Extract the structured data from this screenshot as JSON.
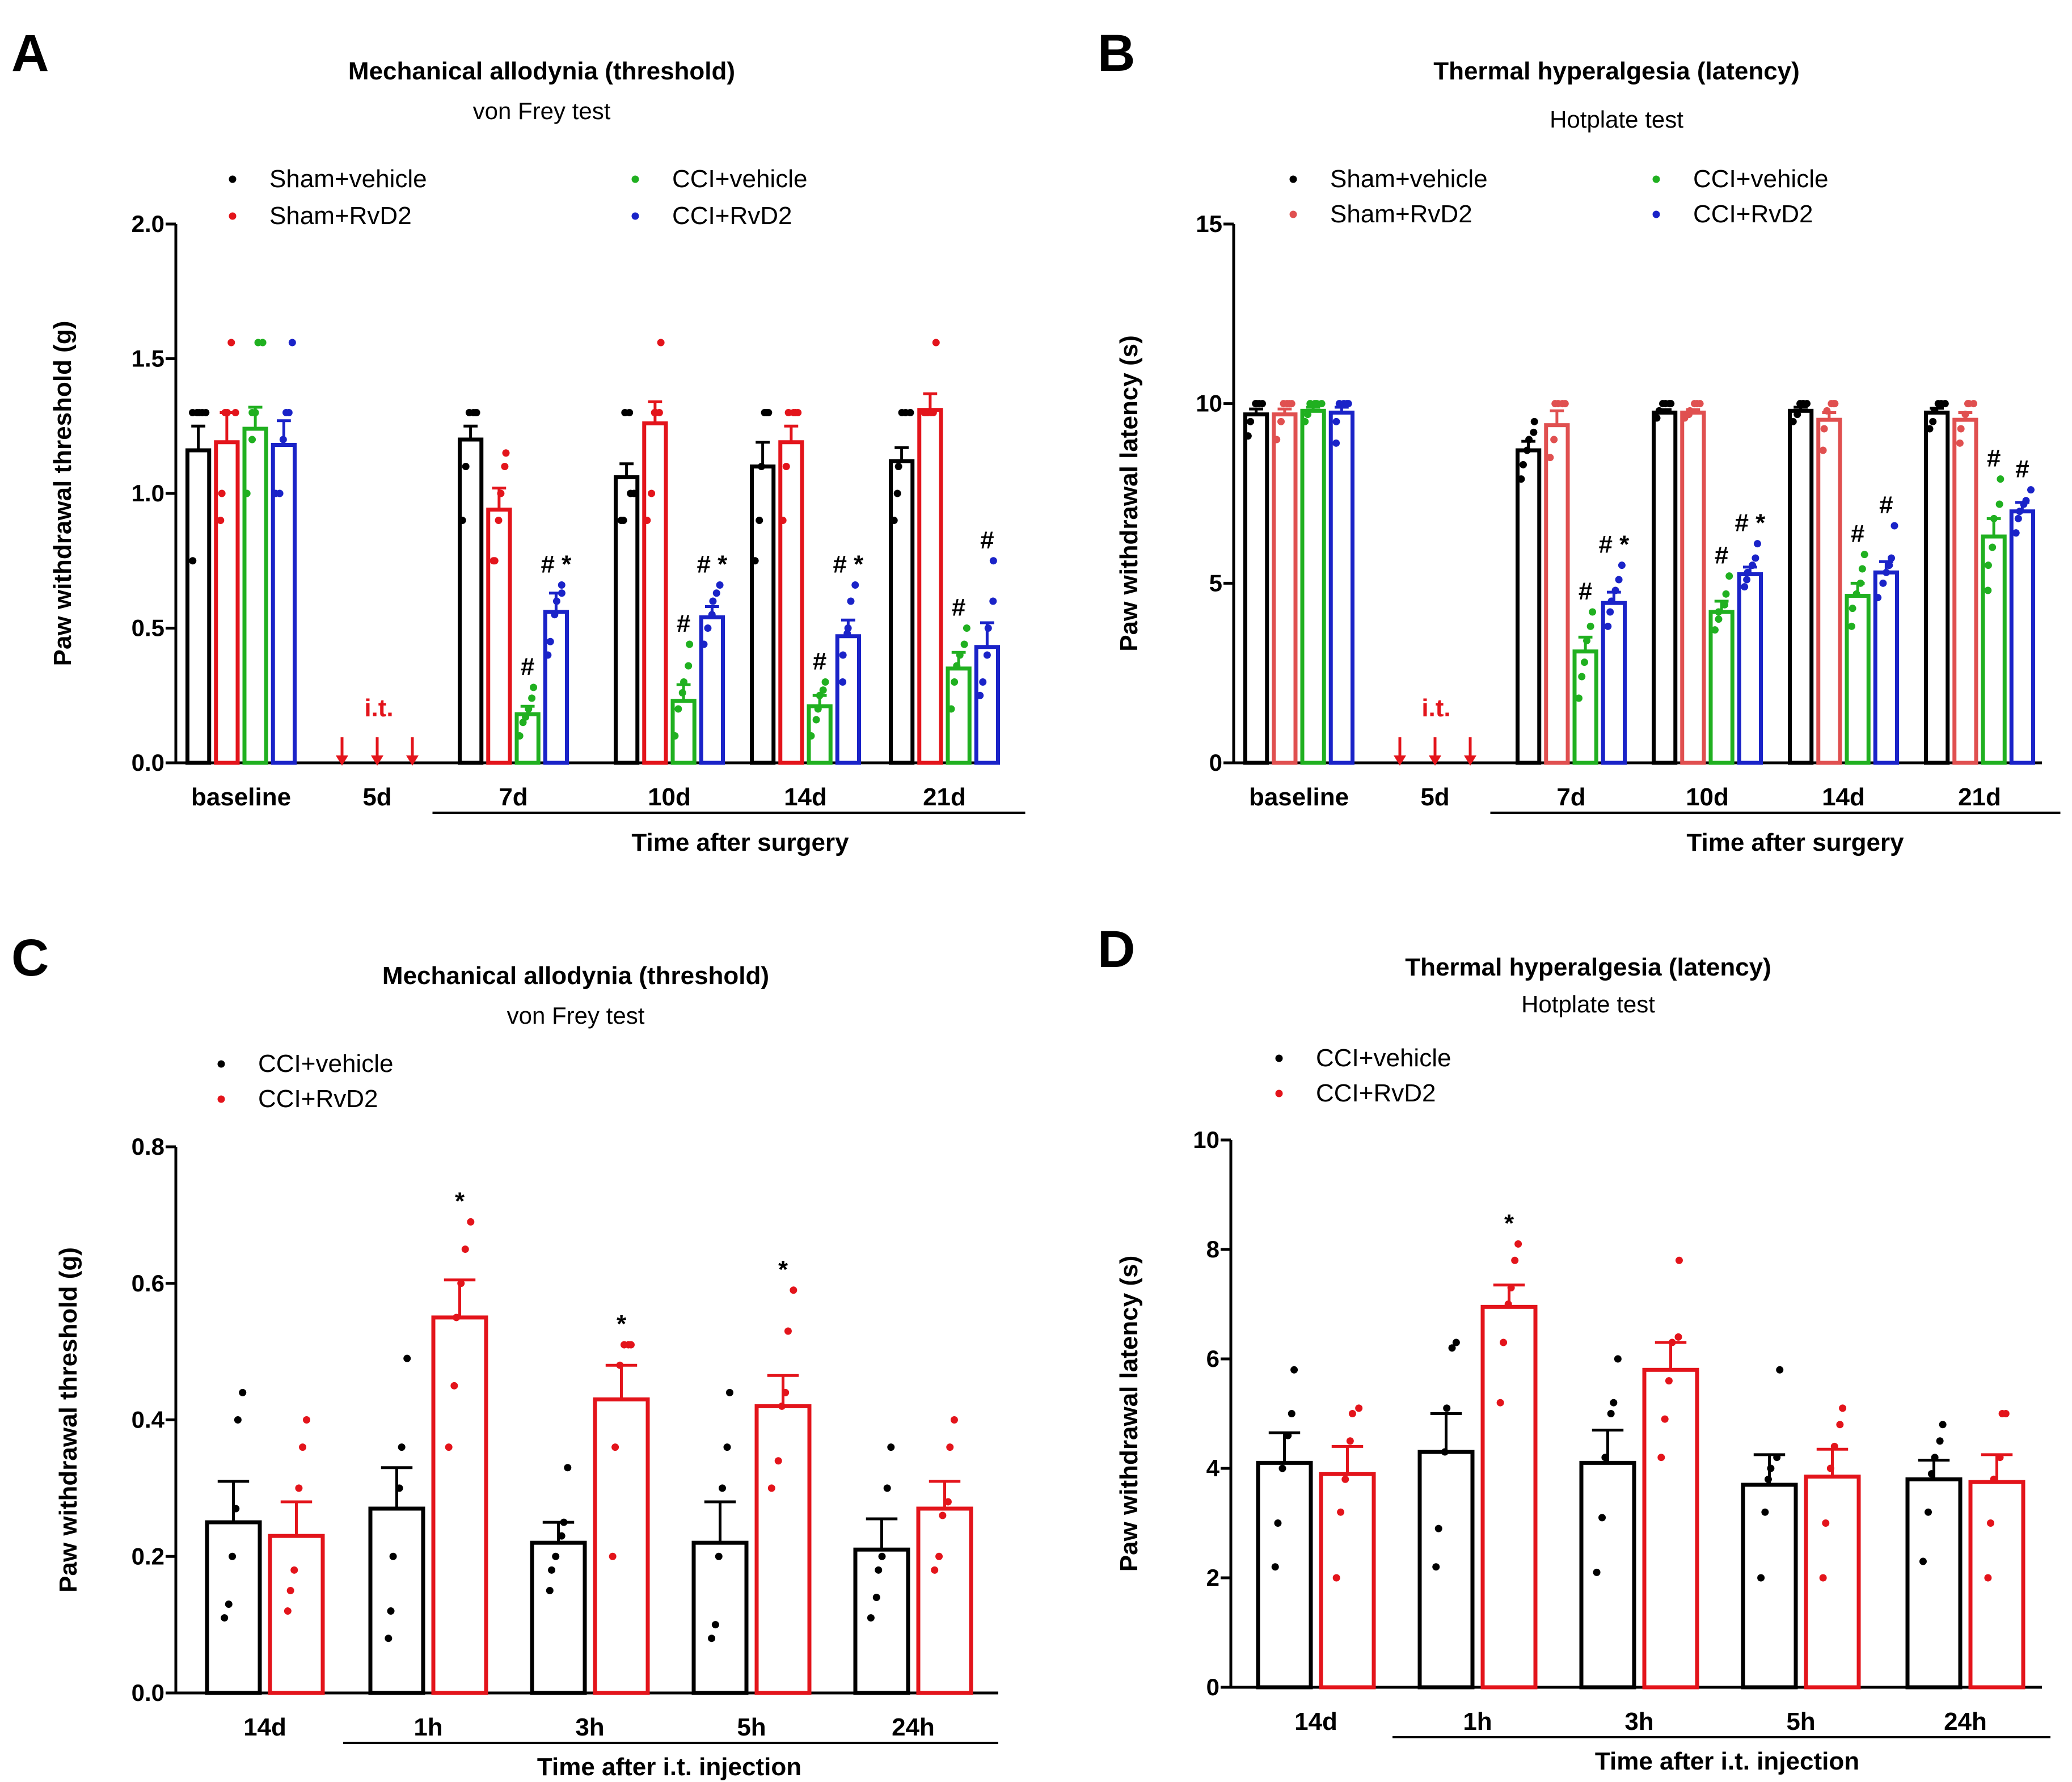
{
  "figure_title": "",
  "chart_data": [
    {
      "panel": "A",
      "type": "bar",
      "title": "Mechanical allodynia (threshold)",
      "subtitle": "von Frey test",
      "ylabel": "Paw withdrawal threshold (g)",
      "xlabel": "Time after surgery",
      "ylim": [
        0,
        2.0
      ],
      "yticks": [
        "0.0",
        "0.5",
        "1.0",
        "1.5",
        "2.0"
      ],
      "categories": [
        "baseline",
        "5d",
        "7d",
        "10d",
        "14d",
        "21d"
      ],
      "injection_label": "i.t.",
      "injection_category": "5d",
      "series": [
        {
          "name": "Sham+vehicle",
          "color": "#000000",
          "values": [
            1.16,
            null,
            1.2,
            1.06,
            1.1,
            1.12
          ],
          "errors": [
            0.09,
            null,
            0.05,
            0.05,
            0.09,
            0.05
          ],
          "points": [
            [
              0.75,
              1.3,
              1.3,
              1.3,
              1.3,
              1.3
            ],
            [],
            [
              0.9,
              1.1,
              1.3,
              1.3,
              1.3,
              1.3
            ],
            [
              0.9,
              0.9,
              1.3,
              1.3,
              1.0,
              1.0
            ],
            [
              0.75,
              0.9,
              1.1,
              1.3,
              1.3,
              1.3
            ],
            [
              0.9,
              1.0,
              1.1,
              1.3,
              1.3,
              1.3
            ]
          ]
        },
        {
          "name": "Sham+RvD2",
          "color": "#e3141b",
          "values": [
            1.19,
            null,
            0.94,
            1.26,
            1.19,
            1.31
          ],
          "errors": [
            0.11,
            null,
            0.08,
            0.08,
            0.06,
            0.06
          ],
          "points": [
            [
              0.9,
              1.0,
              1.3,
              1.3,
              1.56,
              1.3
            ],
            [],
            [
              0.75,
              0.75,
              0.9,
              1.0,
              1.1,
              1.15
            ],
            [
              0.9,
              1.0,
              1.3,
              1.3,
              1.3,
              1.56
            ],
            [
              0.9,
              1.1,
              1.3,
              1.3,
              1.3,
              1.3
            ],
            [
              1.3,
              1.3,
              1.3,
              1.3,
              1.3,
              1.56
            ]
          ]
        },
        {
          "name": "CCI+vehicle",
          "color": "#20b020",
          "values": [
            1.24,
            null,
            0.18,
            0.23,
            0.21,
            0.35
          ],
          "errors": [
            0.08,
            null,
            0.03,
            0.06,
            0.04,
            0.06
          ],
          "points": [
            [
              1.0,
              1.2,
              1.3,
              1.3,
              1.56,
              1.56
            ],
            [],
            [
              0.1,
              0.15,
              0.17,
              0.2,
              0.24,
              0.28
            ],
            [
              0.1,
              0.2,
              0.26,
              0.3,
              0.36,
              0.44
            ],
            [
              0.1,
              0.16,
              0.2,
              0.25,
              0.27,
              0.3
            ],
            [
              0.2,
              0.3,
              0.36,
              0.4,
              0.44,
              0.5
            ]
          ]
        },
        {
          "name": "CCI+RvD2",
          "color": "#1a23c8",
          "values": [
            1.18,
            null,
            0.56,
            0.54,
            0.47,
            0.43
          ],
          "errors": [
            0.09,
            null,
            0.07,
            0.04,
            0.06,
            0.09
          ],
          "points": [
            [
              1.0,
              1.0,
              1.2,
              1.3,
              1.3,
              1.56
            ],
            [],
            [
              0.4,
              0.45,
              0.55,
              0.6,
              0.63,
              0.66
            ],
            [
              0.44,
              0.5,
              0.55,
              0.6,
              0.63,
              0.66
            ],
            [
              0.3,
              0.4,
              0.48,
              0.5,
              0.6,
              0.66
            ],
            [
              0.25,
              0.3,
              0.4,
              0.5,
              0.6,
              0.75
            ]
          ]
        }
      ],
      "annotations": [
        {
          "category": "7d",
          "series": "CCI+vehicle",
          "text": "#"
        },
        {
          "category": "7d",
          "series": "CCI+RvD2",
          "text": "# *"
        },
        {
          "category": "10d",
          "series": "CCI+vehicle",
          "text": "#"
        },
        {
          "category": "10d",
          "series": "CCI+RvD2",
          "text": "# *"
        },
        {
          "category": "14d",
          "series": "CCI+vehicle",
          "text": "#"
        },
        {
          "category": "14d",
          "series": "CCI+RvD2",
          "text": "# *"
        },
        {
          "category": "21d",
          "series": "CCI+vehicle",
          "text": "#"
        },
        {
          "category": "21d",
          "series": "CCI+RvD2",
          "text": "#"
        }
      ]
    },
    {
      "panel": "B",
      "type": "bar",
      "title": "Thermal hyperalgesia (latency)",
      "subtitle": "Hotplate test",
      "ylabel": "Paw withdrawal latency (s)",
      "xlabel": "Time after surgery",
      "ylim": [
        0,
        15
      ],
      "yticks": [
        "0",
        "5",
        "10",
        "15"
      ],
      "categories": [
        "baseline",
        "5d",
        "7d",
        "10d",
        "14d",
        "21d"
      ],
      "injection_label": "i.t.",
      "injection_category": "5d",
      "series": [
        {
          "name": "Sham+vehicle",
          "color": "#000000",
          "values": [
            9.7,
            null,
            8.7,
            9.75,
            9.8,
            9.75
          ],
          "errors": [
            0.15,
            null,
            0.25,
            0.08,
            0.1,
            0.12
          ],
          "points": [
            [
              9.1,
              9.5,
              10,
              10,
              10,
              10
            ],
            [],
            [
              7.9,
              8.3,
              8.7,
              9,
              9.2,
              9.5
            ],
            [
              9.6,
              9.8,
              10,
              10,
              10,
              10
            ],
            [
              9.5,
              9.7,
              10,
              10,
              10,
              10
            ],
            [
              9.3,
              9.5,
              9.8,
              10,
              10,
              10
            ]
          ]
        },
        {
          "name": "Sham+RvD2",
          "color": "#e05050",
          "values": [
            9.7,
            null,
            9.4,
            9.75,
            9.55,
            9.55
          ],
          "errors": [
            0.15,
            null,
            0.4,
            0.08,
            0.2,
            0.2
          ],
          "points": [
            [
              9.0,
              9.5,
              10,
              10,
              10,
              10
            ],
            [],
            [
              8.5,
              9,
              10,
              10,
              10,
              10
            ],
            [
              9.6,
              9.7,
              9.8,
              10,
              10,
              10
            ],
            [
              8.7,
              9.3,
              9.8,
              10,
              10,
              10
            ],
            [
              8.9,
              9.3,
              9.7,
              10,
              10,
              10
            ]
          ]
        },
        {
          "name": "CCI+vehicle",
          "color": "#20b020",
          "values": [
            9.8,
            null,
            3.1,
            4.2,
            4.65,
            6.3
          ],
          "errors": [
            0.1,
            null,
            0.4,
            0.3,
            0.35,
            0.5
          ],
          "points": [
            [
              9.5,
              9.7,
              10,
              10,
              10,
              10
            ],
            [],
            [
              1.8,
              2.4,
              2.8,
              3.4,
              3.8,
              4.2
            ],
            [
              3.7,
              4.0,
              4.2,
              4.4,
              4.7,
              5.2
            ],
            [
              3.8,
              4.3,
              4.7,
              5,
              5.4,
              5.8
            ],
            [
              4.8,
              5.5,
              6,
              6.8,
              7.2,
              7.9
            ]
          ]
        },
        {
          "name": "CCI+RvD2",
          "color": "#1a23c8",
          "values": [
            9.75,
            null,
            4.45,
            5.25,
            5.3,
            7.0
          ],
          "errors": [
            0.15,
            null,
            0.3,
            0.2,
            0.3,
            0.25
          ],
          "points": [
            [
              8.9,
              9.5,
              10,
              10,
              10,
              10
            ],
            [],
            [
              3.8,
              4.2,
              4.5,
              4.8,
              5.1,
              5.5
            ],
            [
              4.9,
              5.1,
              5.3,
              5.5,
              5.7,
              6.1
            ],
            [
              4.6,
              5.0,
              5.3,
              5.5,
              5.7,
              6.6
            ],
            [
              6.4,
              6.8,
              7.0,
              7.2,
              7.3,
              7.6
            ]
          ]
        }
      ],
      "annotations": [
        {
          "category": "7d",
          "series": "CCI+vehicle",
          "text": "#"
        },
        {
          "category": "7d",
          "series": "CCI+RvD2",
          "text": "# *"
        },
        {
          "category": "10d",
          "series": "CCI+vehicle",
          "text": "#"
        },
        {
          "category": "10d",
          "series": "CCI+RvD2",
          "text": "# *"
        },
        {
          "category": "14d",
          "series": "CCI+vehicle",
          "text": "#"
        },
        {
          "category": "14d",
          "series": "CCI+RvD2",
          "text": "#"
        },
        {
          "category": "21d",
          "series": "CCI+vehicle",
          "text": "#"
        },
        {
          "category": "21d",
          "series": "CCI+RvD2",
          "text": "#"
        }
      ]
    },
    {
      "panel": "C",
      "type": "bar",
      "title": "Mechanical allodynia (threshold)",
      "subtitle": "von Frey test",
      "ylabel": "Paw withdrawal threshold (g)",
      "xlabel": "Time after i.t. injection",
      "ylim": [
        0,
        0.8
      ],
      "yticks": [
        "0.0",
        "0.2",
        "0.4",
        "0.6",
        "0.8"
      ],
      "categories": [
        "14d",
        "1h",
        "3h",
        "5h",
        "24h"
      ],
      "series": [
        {
          "name": "CCI+vehicle",
          "color": "#000000",
          "values": [
            0.25,
            0.27,
            0.22,
            0.22,
            0.21
          ],
          "errors": [
            0.06,
            0.06,
            0.03,
            0.06,
            0.045
          ],
          "points": [
            [
              0.11,
              0.13,
              0.2,
              0.27,
              0.4,
              0.44
            ],
            [
              0.08,
              0.12,
              0.2,
              0.3,
              0.36,
              0.49
            ],
            [
              0.15,
              0.18,
              0.2,
              0.23,
              0.25,
              0.33
            ],
            [
              0.08,
              0.1,
              0.2,
              0.3,
              0.36,
              0.44
            ],
            [
              0.11,
              0.14,
              0.18,
              0.2,
              0.3,
              0.36
            ]
          ]
        },
        {
          "name": "CCI+RvD2",
          "color": "#e3141b",
          "values": [
            0.23,
            0.55,
            0.43,
            0.42,
            0.27
          ],
          "errors": [
            0.05,
            0.055,
            0.05,
            0.045,
            0.04
          ],
          "points": [
            [
              0.12,
              0.15,
              0.18,
              0.3,
              0.36,
              0.4
            ],
            [
              0.36,
              0.45,
              0.55,
              0.6,
              0.65,
              0.69
            ],
            [
              0.2,
              0.36,
              0.48,
              0.51,
              0.51,
              0.51
            ],
            [
              0.3,
              0.34,
              0.42,
              0.44,
              0.53,
              0.59
            ],
            [
              0.18,
              0.2,
              0.26,
              0.28,
              0.36,
              0.4
            ]
          ]
        }
      ],
      "annotations": [
        {
          "category": "1h",
          "series": "CCI+RvD2",
          "text": "*"
        },
        {
          "category": "3h",
          "series": "CCI+RvD2",
          "text": "*"
        },
        {
          "category": "5h",
          "series": "CCI+RvD2",
          "text": "*"
        }
      ]
    },
    {
      "panel": "D",
      "type": "bar",
      "title": "Thermal hyperalgesia (latency)",
      "subtitle": "Hotplate test",
      "ylabel": "Paw withdrawal latency (s)",
      "xlabel": "Time after i.t. injection",
      "ylim": [
        0,
        10
      ],
      "yticks": [
        "0",
        "2",
        "4",
        "6",
        "8",
        "10"
      ],
      "categories": [
        "14d",
        "1h",
        "3h",
        "5h",
        "24h"
      ],
      "series": [
        {
          "name": "CCI+vehicle",
          "color": "#000000",
          "values": [
            4.1,
            4.3,
            4.1,
            3.7,
            3.8
          ],
          "errors": [
            0.55,
            0.7,
            0.6,
            0.55,
            0.35
          ],
          "points": [
            [
              2.2,
              3.0,
              4.0,
              4.6,
              5.0,
              5.8
            ],
            [
              2.2,
              2.9,
              4.3,
              5.1,
              6.2,
              6.3
            ],
            [
              2.1,
              3.1,
              4.2,
              5.0,
              5.2,
              6.0
            ],
            [
              2.0,
              3.2,
              3.8,
              4.0,
              4.2,
              5.8
            ],
            [
              2.3,
              3.2,
              3.9,
              4.2,
              4.5,
              4.8
            ]
          ]
        },
        {
          "name": "CCI+RvD2",
          "color": "#e3141b",
          "values": [
            3.9,
            6.95,
            5.8,
            3.85,
            3.75
          ],
          "errors": [
            0.5,
            0.4,
            0.5,
            0.5,
            0.5
          ],
          "points": [
            [
              2.0,
              3.2,
              3.8,
              4.5,
              5.0,
              5.1
            ],
            [
              5.2,
              6.3,
              7.0,
              7.3,
              7.8,
              8.1
            ],
            [
              4.2,
              4.9,
              5.6,
              6.3,
              6.4,
              7.8
            ],
            [
              2.0,
              3.0,
              4.0,
              4.4,
              4.8,
              5.1
            ],
            [
              2.0,
              3.0,
              3.8,
              4.2,
              5.0,
              5.0
            ]
          ]
        }
      ],
      "annotations": [
        {
          "category": "1h",
          "series": "CCI+RvD2",
          "text": "*"
        }
      ]
    }
  ]
}
